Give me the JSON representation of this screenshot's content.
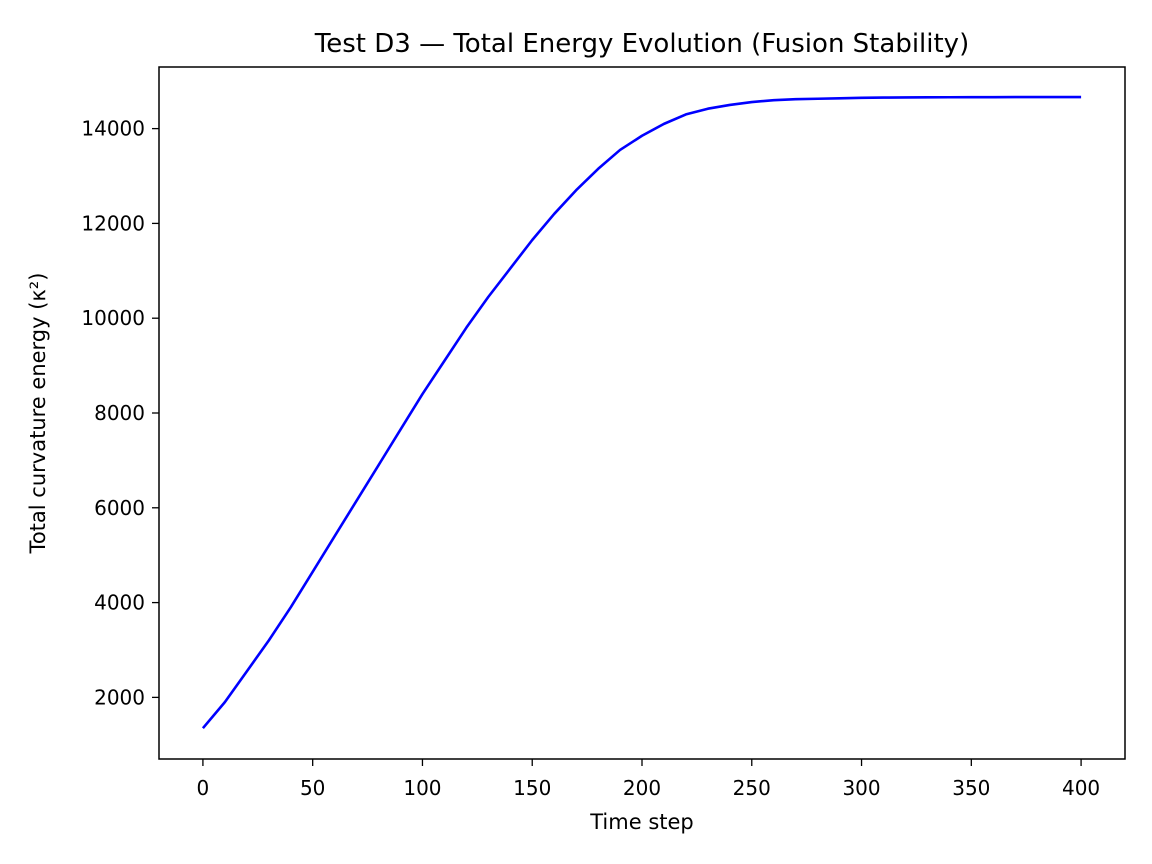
{
  "chart_data": {
    "type": "line",
    "title": "Test D3 — Total Energy Evolution (Fusion Stability)",
    "xlabel": "Time step",
    "ylabel": "Total curvature energy (κ²)",
    "xlim": [
      -20,
      420
    ],
    "ylim": [
      700,
      15300
    ],
    "xticks": [
      0,
      50,
      100,
      150,
      200,
      250,
      300,
      350,
      400
    ],
    "yticks": [
      2000,
      4000,
      6000,
      8000,
      10000,
      12000,
      14000
    ],
    "grid": false,
    "legend": "none",
    "series": [
      {
        "color": "#0000ff",
        "x": [
          0,
          10,
          20,
          30,
          40,
          50,
          60,
          70,
          80,
          90,
          100,
          110,
          120,
          130,
          140,
          150,
          160,
          170,
          180,
          190,
          200,
          210,
          220,
          230,
          240,
          250,
          260,
          270,
          280,
          290,
          300,
          310,
          320,
          330,
          340,
          350,
          360,
          370,
          380,
          390,
          400
        ],
        "y": [
          1350,
          1900,
          2550,
          3200,
          3900,
          4650,
          5400,
          6150,
          6900,
          7650,
          8400,
          9100,
          9800,
          10450,
          11050,
          11650,
          12200,
          12700,
          13150,
          13550,
          13850,
          14100,
          14300,
          14420,
          14500,
          14560,
          14600,
          14620,
          14630,
          14640,
          14650,
          14655,
          14658,
          14660,
          14662,
          14663,
          14664,
          14665,
          14665,
          14665,
          14665
        ]
      }
    ]
  }
}
